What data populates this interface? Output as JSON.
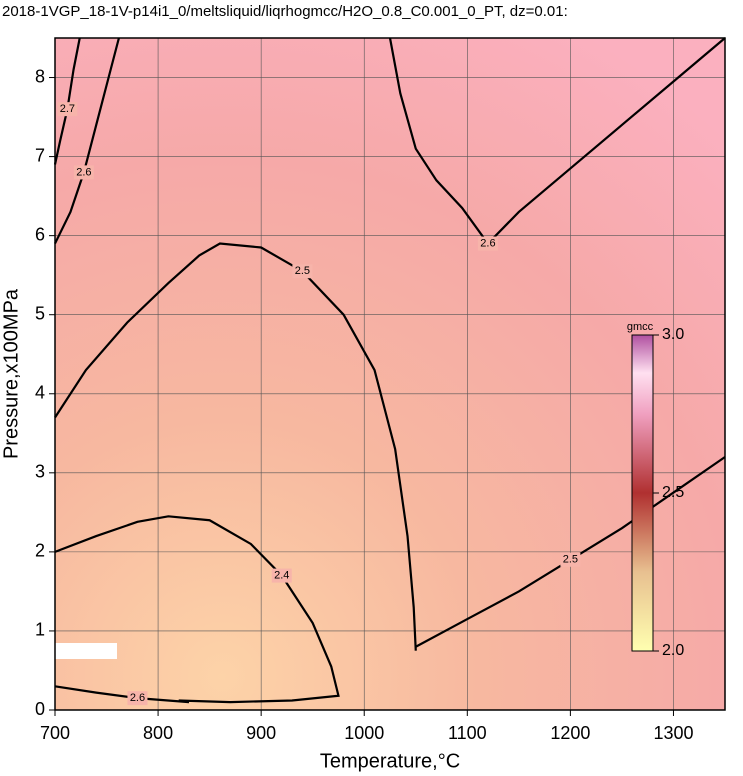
{
  "chart_data": {
    "type": "contour",
    "title": "2018-1VGP_18-1V-p14i1_0/meltsliquid/liqrhogmcc/H2O_0.8_C0.001_0_PT, dz=0.01:",
    "x_label": "Temperature,°C",
    "y_label": "Pressure,x100MPa",
    "xlim": [
      700,
      1350
    ],
    "ylim": [
      0,
      8.5
    ],
    "xticks": [
      700,
      800,
      900,
      1000,
      1100,
      1200,
      1300
    ],
    "yticks": [
      0,
      1,
      2,
      3,
      4,
      5,
      6,
      7,
      8
    ],
    "grid": true,
    "contours": [
      {
        "level": 2.4,
        "x": [
          700,
          740,
          780,
          810,
          850,
          890,
          920,
          950,
          968,
          975,
          930,
          870,
          820
        ],
        "y": [
          2.0,
          2.2,
          2.38,
          2.45,
          2.4,
          2.1,
          1.7,
          1.1,
          0.55,
          0.18,
          0.12,
          0.1,
          0.12
        ]
      },
      {
        "level": 2.5,
        "x": [
          700,
          730,
          770,
          810,
          840,
          860,
          900,
          940,
          980,
          1010,
          1030,
          1042,
          1048,
          1050
        ],
        "y": [
          3.7,
          4.3,
          4.9,
          5.4,
          5.75,
          5.9,
          5.85,
          5.55,
          5.0,
          4.3,
          3.3,
          2.2,
          1.3,
          0.75
        ]
      },
      {
        "level": 2.5,
        "x": [
          1050,
          1100,
          1150,
          1200,
          1250,
          1300,
          1350
        ],
        "y": [
          0.8,
          1.15,
          1.5,
          1.9,
          2.3,
          2.75,
          3.2
        ]
      },
      {
        "level": 2.6,
        "x": [
          1025,
          1035,
          1050,
          1070,
          1095,
          1120,
          1150,
          1200,
          1250,
          1300,
          1350
        ],
        "y": [
          8.5,
          7.8,
          7.1,
          6.7,
          6.35,
          5.9,
          6.3,
          6.85,
          7.4,
          7.95,
          8.5
        ]
      },
      {
        "level": 2.6,
        "x": [
          762,
          752,
          740,
          728,
          715,
          700
        ],
        "y": [
          8.5,
          8.0,
          7.4,
          6.8,
          6.3,
          5.9
        ]
      },
      {
        "level": 2.7,
        "x": [
          724,
          718,
          712,
          705,
          700
        ],
        "y": [
          8.5,
          8.1,
          7.6,
          7.2,
          6.9
        ]
      },
      {
        "level": 2.6,
        "x": [
          700,
          740,
          780,
          830
        ],
        "y": [
          0.3,
          0.22,
          0.15,
          0.1
        ]
      }
    ],
    "colorbar": {
      "label": "gmcc",
      "clim": [
        2.0,
        3.0
      ],
      "ticks": [
        {
          "value": 2.0,
          "label": "2.0"
        },
        {
          "value": 2.5,
          "label": "2.5"
        },
        {
          "value": 3.0,
          "label": "3.0"
        }
      ]
    }
  }
}
